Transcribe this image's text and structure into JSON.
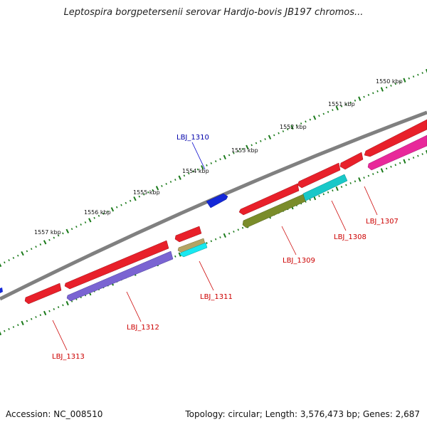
{
  "title": "Leptospira borgpetersenii serovar Hardjo-bovis JB197 chromos...",
  "footer": {
    "accession": "Accession: NC_008510",
    "topology": "Topology: circular; Length: 3,576,473 bp; Genes: 2,687"
  },
  "kbp_labels": [
    "1550 kbp",
    "1551 kbp",
    "1552 kbp",
    "1553 kbp",
    "1554 kbp",
    "1555 kbp",
    "1556 kbp",
    "1557 kbp"
  ],
  "genes": [
    {
      "id": "LBJ_1307",
      "label_color": "#cc0000"
    },
    {
      "id": "LBJ_1308",
      "label_color": "#cc0000"
    },
    {
      "id": "LBJ_1309",
      "label_color": "#cc0000"
    },
    {
      "id": "LBJ_1310",
      "label_color": "#0000aa"
    },
    {
      "id": "LBJ_1311",
      "label_color": "#cc0000"
    },
    {
      "id": "LBJ_1312",
      "label_color": "#cc0000"
    },
    {
      "id": "LBJ_1313",
      "label_color": "#cc0000"
    }
  ],
  "colors": {
    "backbone": "#808080",
    "tick_dot": "#1a7a1a",
    "cds_red": "#e8202a",
    "cds_blue": "#1428d8",
    "cog_cyan": "#18c8c8",
    "cog_olive": "#7a8c2a",
    "cog_purple": "#7a64d2",
    "cog_pink": "#e8289a",
    "cog_tan": "#b4a464",
    "cog_cyan_bright": "#18e8f0"
  }
}
